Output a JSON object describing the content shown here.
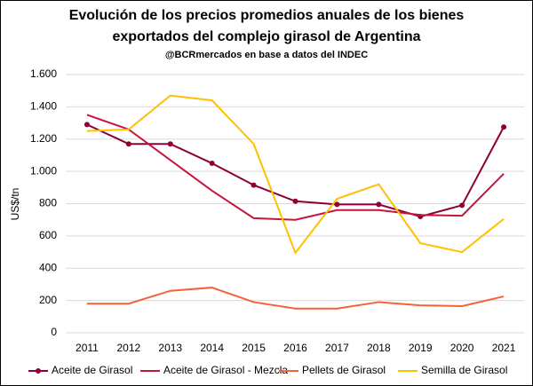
{
  "chart_data": {
    "type": "line",
    "title": "Evolución de los precios promedios anuales de los bienes exportados del complejo girasol de Argentina",
    "subtitle": "@BCRmercados en base a datos del INDEC",
    "y_label": "US$/tn",
    "categories": [
      "2011",
      "2012",
      "2013",
      "2014",
      "2015",
      "2016",
      "2017",
      "2018",
      "2019",
      "2020",
      "2021"
    ],
    "series": [
      {
        "name": "Aceite de Girasol",
        "color": "#8b0038",
        "markers": true,
        "values": [
          1290,
          1170,
          1170,
          1050,
          915,
          815,
          795,
          795,
          720,
          790,
          1275
        ]
      },
      {
        "name": "Aceite de Girasol - Mezcla",
        "color": "#c8143c",
        "markers": false,
        "values": [
          1350,
          1260,
          1070,
          880,
          710,
          700,
          760,
          760,
          730,
          725,
          985
        ]
      },
      {
        "name": "Pellets de Girasol",
        "color": "#f4623a",
        "markers": false,
        "values": [
          180,
          180,
          260,
          280,
          190,
          150,
          150,
          190,
          170,
          165,
          225
        ]
      },
      {
        "name": "Semilla de Girasol",
        "color": "#ffc000",
        "markers": false,
        "values": [
          1250,
          1260,
          1470,
          1440,
          1170,
          495,
          830,
          920,
          555,
          500,
          705
        ]
      }
    ],
    "ylim": [
      0,
      1600
    ],
    "yticks": [
      0,
      200,
      400,
      600,
      800,
      {
        "value": 1000,
        "label": "1.000"
      },
      {
        "value": 1200,
        "label": "1.200"
      },
      {
        "value": 1400,
        "label": "1.400"
      },
      {
        "value": 1600,
        "label": "1.600"
      }
    ],
    "grid": true,
    "legend": "bottom"
  }
}
